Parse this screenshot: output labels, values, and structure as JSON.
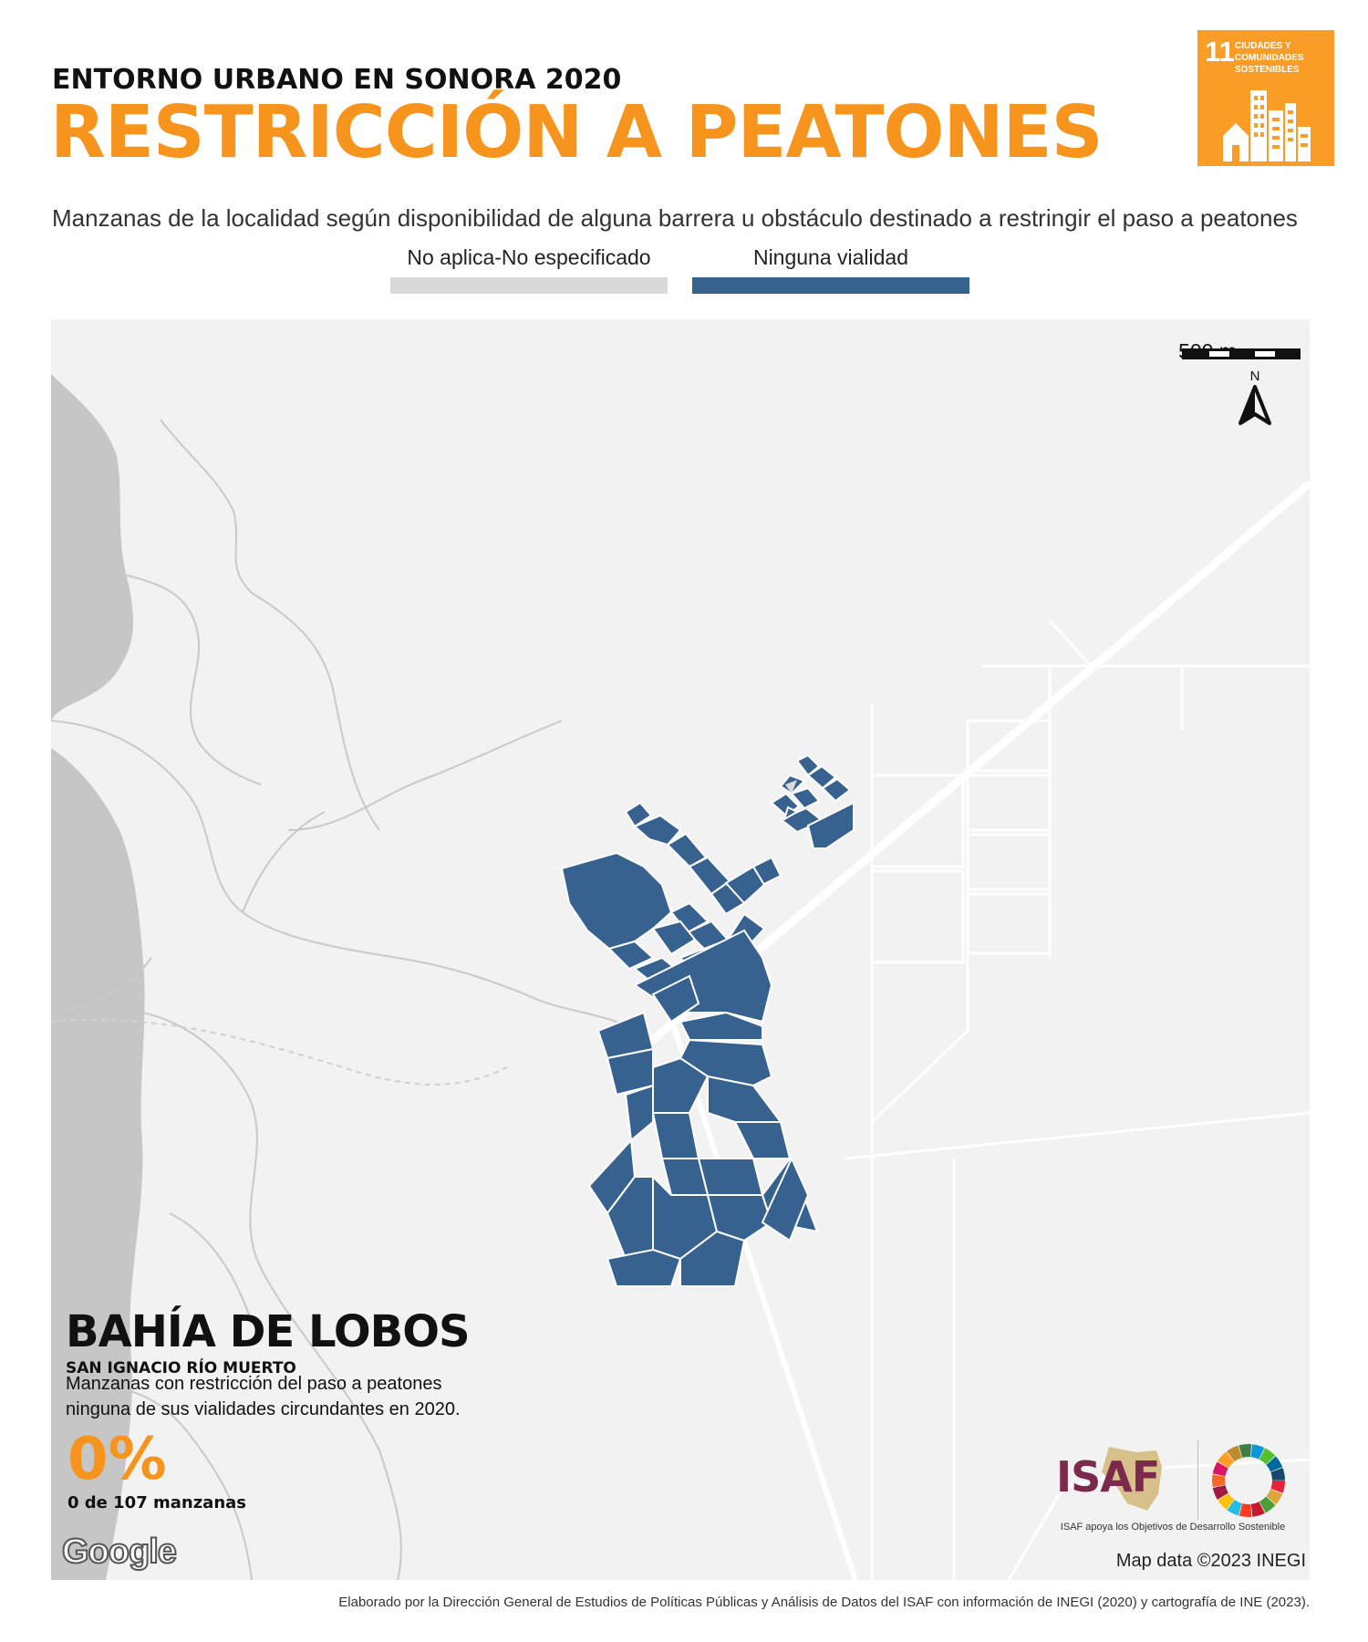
{
  "header": {
    "kicker": "ENTORNO URBANO EN SONORA 2020",
    "title": "RESTRICCIÓN A PEATONES",
    "subtitle": "Manzanas de la localidad según disponibilidad de alguna barrera u obstáculo destinado a restringir el paso a peatones"
  },
  "sdg": {
    "number": "11",
    "label": "CIUDADES Y COMUNIDADES SOSTENIBLES",
    "color": "#f99d26"
  },
  "legend": [
    {
      "label": "No aplica-No especificado",
      "color": "#d9d9d9"
    },
    {
      "label": "Ninguna vialidad",
      "color": "#37628f"
    }
  ],
  "map": {
    "scale_label": "500 m",
    "north_label": "N",
    "background_color": "#f2f2f2",
    "water_color": "#c6c6c6",
    "block_color": "#37628f",
    "attribution": "Map data ©2023 INEGI",
    "google_logo": "Google"
  },
  "locality": {
    "name": "BAHÍA DE LOBOS",
    "municipality": "SAN IGNACIO RÍO MUERTO",
    "description": "Manzanas con restricción del paso a peatones ninguna de sus vialidades circundantes en 2020.",
    "percent": "0%",
    "count": "0 de 107 manzanas"
  },
  "branding": {
    "isaf_name": "ISAF",
    "isaf_tagline": "ISAF apoya los Objetivos de Desarrollo Sostenible"
  },
  "footer": {
    "credit": "Elaborado por la Dirección General de Estudios de Políticas Públicas y Análisis de Datos del ISAF con información de INEGI (2020) y cartografía de INE (2023)."
  }
}
